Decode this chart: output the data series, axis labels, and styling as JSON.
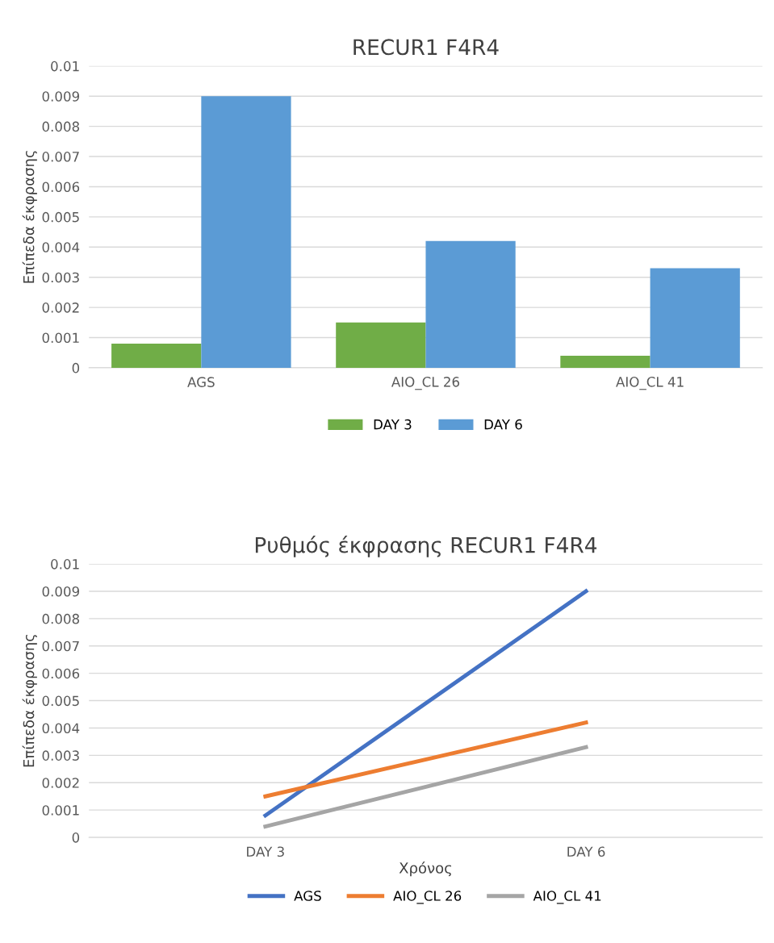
{
  "chart_data": [
    {
      "type": "bar",
      "title": "RECUR1 F4R4",
      "ylabel": "Επίπεδα έκφρασης",
      "categories": [
        "AGS",
        "AIO_CL 26",
        "AIO_CL 41"
      ],
      "series": [
        {
          "name": "DAY 3",
          "color": "#70ad47",
          "values": [
            0.0008,
            0.0015,
            0.0004
          ]
        },
        {
          "name": "DAY 6",
          "color": "#5b9bd5",
          "values": [
            0.009,
            0.0042,
            0.0033
          ]
        }
      ],
      "ylim": [
        0,
        0.01
      ],
      "yticks": [
        0,
        0.001,
        0.002,
        0.003,
        0.004,
        0.005,
        0.006,
        0.007,
        0.008,
        0.009,
        0.01
      ],
      "grid": "y",
      "legend": "bottom"
    },
    {
      "type": "line",
      "title": "Ρυθμός έκφρασης RECUR1 F4R4",
      "ylabel": "Επίπεδα έκφρασης",
      "xlabel": "Χρόνος",
      "categories": [
        "DAY 3",
        "DAY 6"
      ],
      "series": [
        {
          "name": "AGS",
          "color": "#4472c4",
          "values": [
            0.0008,
            0.009
          ]
        },
        {
          "name": "AIO_CL 26",
          "color": "#ed7d31",
          "values": [
            0.0015,
            0.0042
          ]
        },
        {
          "name": "AIO_CL 41",
          "color": "#a5a5a5",
          "values": [
            0.0004,
            0.0033
          ]
        }
      ],
      "ylim": [
        0,
        0.01
      ],
      "yticks": [
        0,
        0.001,
        0.002,
        0.003,
        0.004,
        0.005,
        0.006,
        0.007,
        0.008,
        0.009,
        0.01
      ],
      "grid": "y",
      "legend": "bottom",
      "marker": "none",
      "line_style": "solid"
    }
  ]
}
